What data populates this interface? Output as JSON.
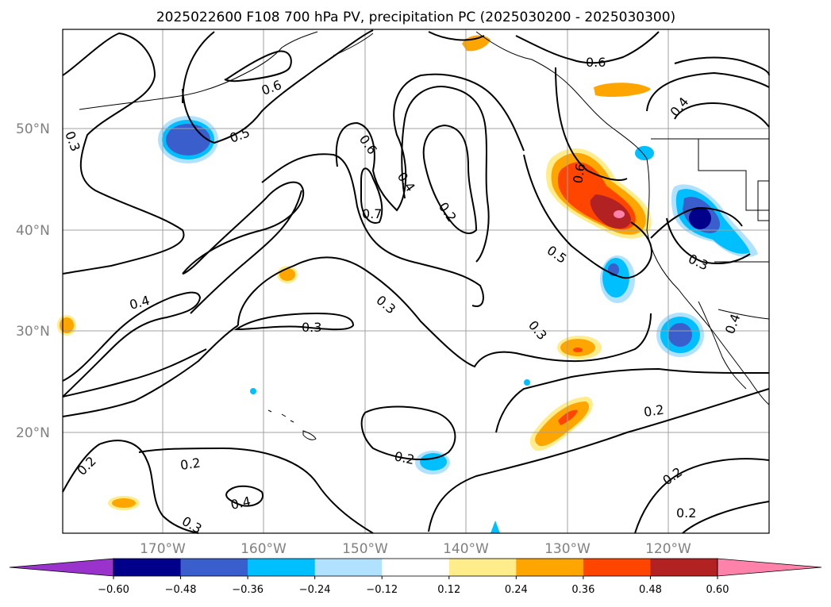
{
  "title": "2025022600 F108 700 hPa PV, precipitation PC (2025030200 - 2025030300)",
  "map": {
    "lon_labels": [
      "170°W",
      "160°W",
      "150°W",
      "140°W",
      "130°W",
      "120°W"
    ],
    "lat_labels": [
      "50°N",
      "40°N",
      "30°N",
      "20°N"
    ],
    "contour_labels": [
      {
        "text": "0.3"
      },
      {
        "text": "0.6"
      },
      {
        "text": "0.5"
      },
      {
        "text": "0.6"
      },
      {
        "text": "0.4"
      },
      {
        "text": "0.7"
      },
      {
        "text": "0.2"
      },
      {
        "text": "0.6"
      },
      {
        "text": "0.5"
      },
      {
        "text": "0.6"
      },
      {
        "text": "0.4"
      },
      {
        "text": "0.3"
      },
      {
        "text": "0.4"
      },
      {
        "text": "0.3"
      },
      {
        "text": "0.3"
      },
      {
        "text": "0.3"
      },
      {
        "text": "0.4"
      },
      {
        "text": "0.2"
      },
      {
        "text": "0.2"
      },
      {
        "text": "0.2"
      },
      {
        "text": "0.2"
      },
      {
        "text": "0.4"
      },
      {
        "text": "0.3"
      },
      {
        "text": "0.2"
      },
      {
        "text": "0.2"
      }
    ]
  },
  "colorbar": {
    "ticks": [
      "−0.60",
      "−0.48",
      "−0.36",
      "−0.24",
      "−0.12",
      "0.12",
      "0.24",
      "0.36",
      "0.48",
      "0.60"
    ],
    "colors": [
      "#9933cc",
      "#00008b",
      "#3a5fcd",
      "#00bfff",
      "#b0e2ff",
      "#ffffff",
      "#ffec8b",
      "#ffa500",
      "#ff4500",
      "#b22222",
      "#ff82ab"
    ]
  }
}
